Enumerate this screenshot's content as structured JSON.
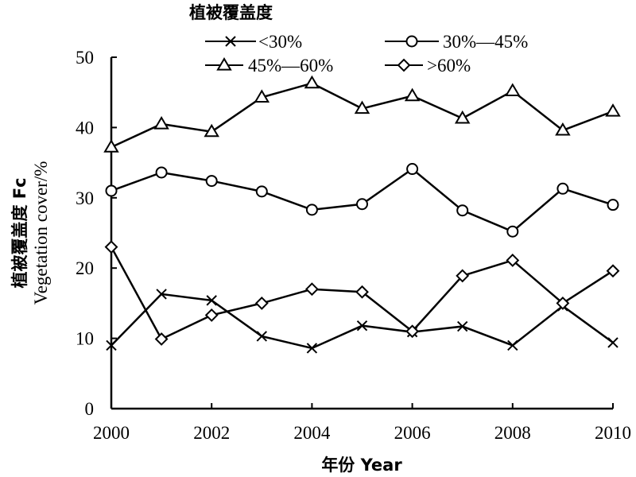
{
  "chart_data": {
    "type": "line",
    "legend_title": "植被覆盖度",
    "xlabel": "年份 Year",
    "ylabel_line1": "植被覆盖度 Fc",
    "ylabel_line2": "Vegetation cover/%",
    "x": [
      2000,
      2001,
      2002,
      2003,
      2004,
      2005,
      2006,
      2007,
      2008,
      2009,
      2010
    ],
    "xticks": [
      "2000",
      "2002",
      "2004",
      "2006",
      "2008",
      "2010"
    ],
    "xlim": [
      2000,
      2010
    ],
    "ylim": [
      0,
      50
    ],
    "yticks": [
      "0",
      "10",
      "20",
      "30",
      "40",
      "50"
    ],
    "grid": false,
    "legend_position": "top",
    "series": [
      {
        "name": "<30%",
        "marker": "x",
        "values": [
          9.0,
          16.3,
          15.4,
          10.3,
          8.6,
          11.8,
          10.9,
          11.7,
          9.0,
          14.6,
          9.4
        ]
      },
      {
        "name": "30%—45%",
        "marker": "circle",
        "values": [
          31.0,
          33.6,
          32.4,
          30.9,
          28.3,
          29.1,
          34.1,
          28.2,
          25.2,
          31.3,
          29.0
        ]
      },
      {
        "name": "45%—60%",
        "marker": "triangle",
        "values": [
          37.2,
          40.5,
          39.4,
          44.3,
          46.3,
          42.7,
          44.5,
          41.3,
          45.2,
          39.6,
          42.3
        ]
      },
      {
        "name": ">60%",
        "marker": "diamond",
        "values": [
          23.0,
          9.9,
          13.3,
          15.0,
          17.0,
          16.6,
          11.0,
          18.9,
          21.1,
          15.0,
          19.6
        ]
      }
    ]
  }
}
